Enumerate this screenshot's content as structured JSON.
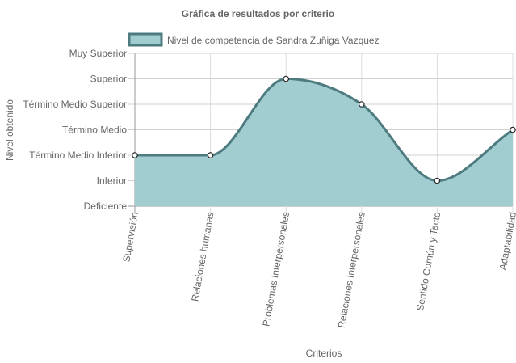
{
  "chart_data": {
    "type": "area",
    "title": "Gráfica de resultados por criterio",
    "xlabel": "Criterios",
    "ylabel": "Nivel obtenido",
    "categories": [
      "Supervisión",
      "Relaciones humanas",
      "Problemas Interpersonales",
      "Relaciones Interpersonales",
      "Sentido Común y Tacto",
      "Adaptabilidad"
    ],
    "y_levels": [
      "Deficiente",
      "Inferior",
      "Término Medio Inferior",
      "Término Medio",
      "Término Medio Superior",
      "Superior",
      "Muy Superior"
    ],
    "ylim": [
      0,
      6
    ],
    "series": [
      {
        "name": "Nivel de competencia de Sandra Zuñiga Vazquez",
        "values": [
          2,
          2,
          5,
          4,
          1,
          3
        ],
        "fill_color": "#a1cdd0",
        "line_color": "#4e7b80"
      }
    ],
    "legend_position": "top",
    "grid": true,
    "smooth": true
  }
}
